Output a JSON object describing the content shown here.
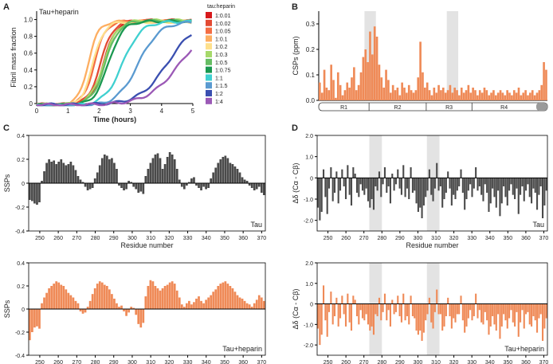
{
  "panel_labels": [
    "A",
    "B",
    "C",
    "D"
  ],
  "chart_data": [
    {
      "id": "A",
      "type": "line",
      "title": "Tau+heparin",
      "xlabel": "Time (hours)",
      "ylabel": "Fibril mass fraction",
      "xlim": [
        0,
        5
      ],
      "ylim": [
        0,
        1.1
      ],
      "xticks": [
        "0",
        "1",
        "2",
        "3",
        "4",
        "5"
      ],
      "yticks": [
        "0",
        "0.2",
        "0.4",
        "0.6",
        "0.8",
        "1.0"
      ],
      "legend_title": "tau:heparin",
      "series": [
        {
          "name": "1:0.01",
          "color": "#d7191c",
          "t50": 2.15,
          "k": 5.0
        },
        {
          "name": "1:0.02",
          "color": "#e34a33",
          "t50": 2.05,
          "k": 5.0
        },
        {
          "name": "1:0.05",
          "color": "#f46d43",
          "t50": 1.85,
          "k": 5.5
        },
        {
          "name": "1:0.1",
          "color": "#fdae61",
          "t50": 1.65,
          "k": 6.0
        },
        {
          "name": "1:0.2",
          "color": "#fee08b",
          "t50": 1.8,
          "k": 5.5
        },
        {
          "name": "1:0.3",
          "color": "#a6d96a",
          "t50": 2.15,
          "k": 4.6
        },
        {
          "name": "1:0.5",
          "color": "#66bd63",
          "t50": 2.2,
          "k": 4.6
        },
        {
          "name": "1:0.75",
          "color": "#1a9850",
          "t50": 2.3,
          "k": 4.4
        },
        {
          "name": "1:1",
          "color": "#3fd0d0",
          "t50": 2.75,
          "k": 3.4
        },
        {
          "name": "1:1.5",
          "color": "#5a9ad0",
          "t50": 3.25,
          "k": 2.9
        },
        {
          "name": "1:2",
          "color": "#3a4fb0",
          "t50": 4.2,
          "k": 2.2
        },
        {
          "name": "1:4",
          "color": "#9b59b6",
          "t50": 4.6,
          "k": 1.9
        }
      ]
    },
    {
      "id": "B",
      "type": "bar",
      "ylabel": "CSPs (ppm)",
      "ylim": [
        0,
        0.35
      ],
      "yticks": [
        "0.0",
        "0.1",
        "0.2",
        "0.3"
      ],
      "highlight_ranges": [
        [
          20,
          25
        ],
        [
          56,
          61
        ]
      ],
      "domains": [
        "R1",
        "R2",
        "R3",
        "R4"
      ],
      "color": "#ef8a57",
      "values": [
        0.07,
        0.03,
        0.12,
        0.05,
        0.04,
        0.14,
        0.08,
        0.01,
        0.11,
        0.06,
        0.02,
        0.04,
        0.07,
        0.05,
        0.09,
        0.13,
        0.04,
        0.06,
        0.11,
        0.17,
        0.2,
        0.15,
        0.27,
        0.18,
        0.29,
        0.25,
        0.14,
        0.09,
        0.05,
        0.12,
        0.08,
        0.03,
        0.06,
        0.04,
        0.05,
        0.02,
        0.07,
        0.05,
        0.03,
        0.06,
        0.04,
        0.03,
        0.04,
        0.09,
        0.23,
        0.11,
        0.05,
        0.07,
        0.04,
        0.02,
        0.05,
        0.03,
        0.06,
        0.04,
        0.05,
        0.03,
        0.04,
        0.06,
        0.03,
        0.05,
        0.04,
        0.02,
        0.05,
        0.03,
        0.04,
        0.06,
        0.03,
        0.05,
        0.04,
        0.02,
        0.04,
        0.03,
        0.05,
        0.04,
        0.02,
        0.03,
        0.04,
        0.02,
        0.03,
        0.04,
        0.03,
        0.02,
        0.04,
        0.03,
        0.02,
        0.04,
        0.03,
        0.05,
        0.02,
        0.03,
        0.04,
        0.02,
        0.03,
        0.04,
        0.02,
        0.03,
        0.04,
        0.06,
        0.15,
        0.12
      ]
    },
    {
      "id": "C-top",
      "type": "bar",
      "label": "Tau",
      "ylabel": "SSPs",
      "xlabel": "Residue number",
      "xlim": [
        244,
        372
      ],
      "ylim": [
        -0.4,
        0.4
      ],
      "yticks": [
        "0.4",
        "0.2",
        "0",
        "-0.2",
        "-0.4"
      ],
      "xticks": [
        "250",
        "260",
        "270",
        "280",
        "290",
        "300",
        "310",
        "320",
        "330",
        "340",
        "350",
        "360",
        "370"
      ],
      "color": "#4a4a4a",
      "values": [
        -0.14,
        -0.15,
        -0.17,
        -0.18,
        -0.16,
        0.02,
        0.1,
        0.17,
        0.2,
        0.18,
        0.19,
        0.16,
        0.18,
        0.2,
        0.17,
        0.15,
        0.16,
        0.18,
        0.15,
        0.11,
        0.06,
        0.03,
        0.01,
        -0.03,
        -0.06,
        -0.05,
        -0.04,
        0.04,
        0.09,
        0.15,
        0.21,
        0.24,
        0.23,
        0.2,
        0.21,
        0.17,
        0.12,
        -0.02,
        -0.04,
        -0.06,
        -0.05,
        0.02,
        0.01,
        -0.03,
        -0.05,
        -0.08,
        -0.07,
        -0.09,
        0.06,
        0.12,
        0.17,
        0.21,
        0.24,
        0.25,
        0.21,
        0.12,
        0.16,
        0.22,
        0.26,
        0.24,
        0.2,
        0.12,
        0.03,
        -0.03,
        -0.05,
        -0.02,
        0.01,
        0.04,
        0.05,
        -0.02,
        -0.04,
        -0.06,
        -0.03,
        -0.05,
        -0.04,
        0.04,
        0.09,
        0.13,
        0.17,
        0.2,
        0.22,
        0.23,
        0.21,
        0.17,
        0.16,
        0.14,
        0.12,
        0.09,
        0.05,
        0.03,
        0.02,
        -0.02,
        -0.04,
        -0.06,
        -0.05,
        -0.03,
        -0.08,
        -0.1
      ]
    },
    {
      "id": "C-bottom",
      "type": "bar",
      "label": "Tau+heparin",
      "ylabel": "SSPs",
      "xlabel": "Residue number",
      "xlim": [
        244,
        372
      ],
      "ylim": [
        -0.4,
        0.4
      ],
      "yticks": [
        "0.4",
        "0.2",
        "0",
        "-0.2",
        "-0.4"
      ],
      "xticks": [
        "250",
        "260",
        "270",
        "280",
        "290",
        "300",
        "310",
        "320",
        "330",
        "340",
        "350",
        "360",
        "370"
      ],
      "color": "#ef8a57",
      "values": [
        -0.27,
        -0.2,
        -0.16,
        -0.15,
        -0.17,
        0.05,
        0.1,
        0.14,
        0.18,
        0.2,
        0.22,
        0.24,
        0.23,
        0.21,
        0.2,
        0.17,
        0.14,
        0.12,
        0.1,
        0.07,
        0.05,
        -0.02,
        -0.04,
        -0.03,
        0.02,
        0.07,
        0.13,
        0.18,
        0.22,
        0.24,
        0.23,
        0.21,
        0.2,
        0.17,
        0.13,
        0.09,
        0.05,
        0.02,
        0.03,
        -0.02,
        -0.06,
        -0.03,
        0.02,
        0.01,
        -0.05,
        -0.13,
        -0.16,
        -0.12,
        0.11,
        0.2,
        0.25,
        0.24,
        0.2,
        0.18,
        0.16,
        0.18,
        0.2,
        0.21,
        0.23,
        0.24,
        0.22,
        0.16,
        0.1,
        0.04,
        0.02,
        0.05,
        0.07,
        0.04,
        0.06,
        0.09,
        0.11,
        0.07,
        0.05,
        0.08,
        0.1,
        0.12,
        0.15,
        0.17,
        0.2,
        0.22,
        0.23,
        0.24,
        0.22,
        0.2,
        0.18,
        0.15,
        0.12,
        0.1,
        0.09,
        0.07,
        0.05,
        0.04,
        0.02,
        0.05,
        0.08,
        0.12,
        0.1,
        0.07
      ]
    },
    {
      "id": "D-top",
      "type": "bar",
      "label": "Tau",
      "ylabel": "Δδ (Cα - Cβ)",
      "xlabel": "Residue number",
      "xlim": [
        244,
        372
      ],
      "ylim": [
        -2.5,
        2.0
      ],
      "yticks": [
        "2.0",
        "1.0",
        "0",
        "-1.0",
        "-2.0"
      ],
      "xticks": [
        "250",
        "260",
        "270",
        "280",
        "290",
        "300",
        "310",
        "320",
        "330",
        "340",
        "350",
        "360",
        "370"
      ],
      "highlight_ranges": [
        [
          273,
          280
        ],
        [
          305,
          312
        ]
      ],
      "color": "#4a4a4a",
      "values": [
        -1.4,
        -2.0,
        -1.6,
        0.4,
        -0.9,
        -1.7,
        -0.5,
        0.5,
        -1.1,
        -0.7,
        0.3,
        -1.2,
        -0.6,
        0.4,
        -0.4,
        -1.0,
        0.6,
        -0.8,
        -1.3,
        0.5,
        0.2,
        -0.7,
        -0.9,
        -0.3,
        -0.6,
        -0.8,
        -0.5,
        -1.1,
        -1.4,
        -1.0,
        -1.5,
        -0.4,
        -0.6,
        0.3,
        -0.9,
        -0.3,
        0.5,
        -0.7,
        -0.4,
        -1.2,
        0.2,
        -0.6,
        -0.3,
        0.4,
        -0.5,
        -0.8,
        0.6,
        -0.9,
        -0.5,
        -1.0,
        0.5,
        -0.7,
        -0.6,
        -1.2,
        -1.6,
        -1.4,
        -1.9,
        -1.3,
        -0.9,
        -0.6,
        0.4,
        -0.8,
        -1.1,
        -0.5,
        0.7,
        -0.6,
        -0.4,
        -1.4,
        -1.0,
        -0.7,
        0.3,
        -0.5,
        -1.3,
        -0.8,
        -1.0,
        -0.6,
        -0.4,
        0.4,
        -0.7,
        -1.5,
        -1.0,
        -0.6,
        -0.3,
        -0.9,
        -0.5,
        0.5,
        -0.6,
        -0.4,
        -0.8,
        -1.1,
        -0.3,
        -0.7,
        -1.6,
        -1.2,
        -0.5,
        -0.9,
        -1.4,
        -0.6,
        -1.8,
        -1.2,
        -0.4,
        -0.9,
        -1.3,
        -0.6,
        -0.3,
        -0.8,
        -1.0,
        -0.5,
        -1.7,
        -0.8,
        -0.4,
        -1.1,
        -0.6,
        -0.3,
        -0.9,
        -1.2,
        -0.5,
        -0.7,
        -1.5,
        -0.8,
        -0.4,
        -1.9,
        -1.3,
        -0.6
      ]
    },
    {
      "id": "D-bottom",
      "type": "bar",
      "label": "Tau+heparin",
      "ylabel": "Δδ (Cα - Cβ)",
      "xlabel": "Residue number",
      "xlim": [
        244,
        372
      ],
      "ylim": [
        -2.5,
        2.0
      ],
      "yticks": [
        "2.0",
        "1.0",
        "0",
        "-1.0",
        "-2.0"
      ],
      "xticks": [
        "250",
        "260",
        "270",
        "280",
        "290",
        "300",
        "310",
        "320",
        "330",
        "340",
        "350",
        "360",
        "370"
      ],
      "highlight_ranges": [
        [
          273,
          280
        ],
        [
          305,
          312
        ]
      ],
      "color": "#ef8a57",
      "values": [
        -1.2,
        -2.0,
        -1.5,
        0.9,
        -0.8,
        -1.6,
        -0.4,
        0.6,
        -1.0,
        -0.6,
        0.3,
        -1.1,
        -0.7,
        0.4,
        -0.5,
        -1.1,
        0.5,
        -0.9,
        -1.3,
        0.4,
        0.2,
        -0.6,
        -1.0,
        -0.3,
        -0.7,
        -0.8,
        -0.5,
        -1.0,
        -1.3,
        -1.1,
        -1.5,
        -0.5,
        -0.6,
        0.3,
        -0.8,
        -0.4,
        0.5,
        -0.8,
        -0.3,
        -1.1,
        0.2,
        -0.5,
        -0.4,
        0.4,
        -0.6,
        -0.9,
        0.5,
        -0.8,
        -0.6,
        -1.0,
        0.4,
        -0.6,
        -0.7,
        -1.3,
        -1.5,
        -1.3,
        -1.8,
        -1.4,
        -0.8,
        -0.5,
        0.3,
        -0.9,
        -1.2,
        -0.4,
        0.7,
        -0.5,
        -0.5,
        -1.3,
        -1.1,
        -0.6,
        0.3,
        -0.6,
        -1.2,
        -0.7,
        -0.9,
        -0.5,
        -0.5,
        0.4,
        -0.8,
        -1.4,
        -1.1,
        -0.7,
        -0.3,
        -0.8,
        -0.6,
        0.5,
        -0.7,
        -0.3,
        -0.9,
        -1.0,
        -0.4,
        -0.8,
        -1.5,
        -1.1,
        -0.6,
        -1.0,
        -1.3,
        -0.5,
        -1.7,
        -1.1,
        -0.5,
        -0.8,
        -1.2,
        -0.7,
        -0.3,
        -0.9,
        -1.1,
        -0.4,
        -1.6,
        -0.9,
        -0.3,
        -1.2,
        -0.5,
        -0.4,
        -1.0,
        -1.1,
        -0.6,
        -0.8,
        -1.4,
        -0.7,
        -0.5,
        -1.8,
        -1.2,
        -0.7
      ]
    }
  ]
}
